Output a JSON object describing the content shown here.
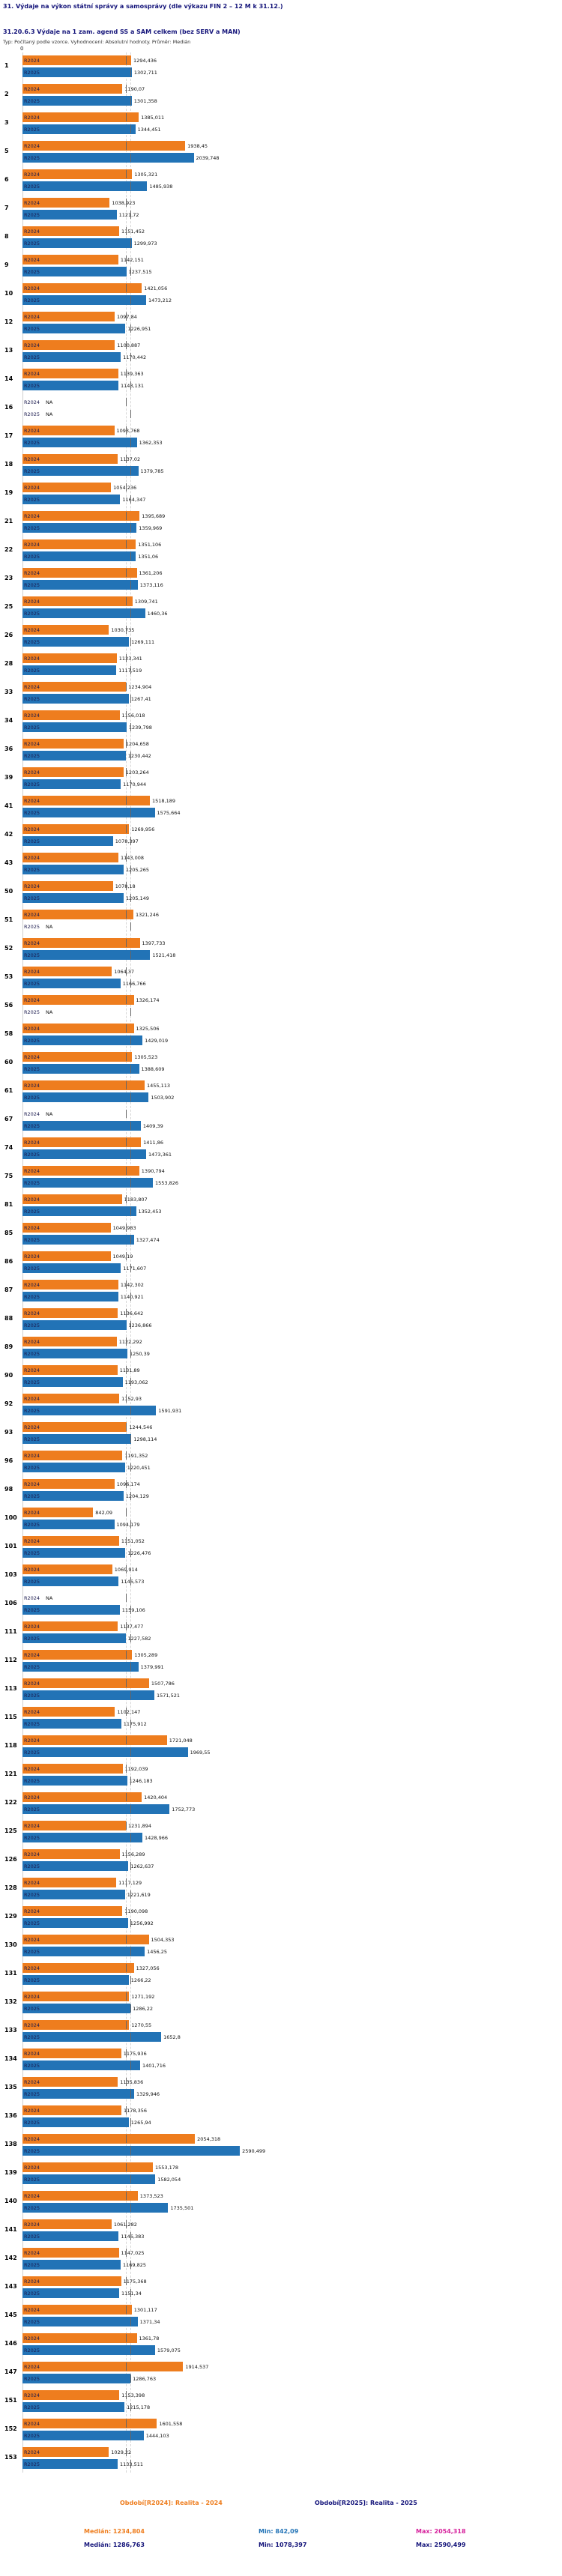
{
  "colors": {
    "accent_2024": "#ee7d1e",
    "accent_2025": "#2273b6",
    "navy": "#14147a",
    "magenta": "#d6219c",
    "median_line": "#d6d6d6"
  },
  "header": {
    "title": "31. Výdaje na výkon státní správy a samosprávy (dle výkazu FIN 2 – 12 M k 31.12.)",
    "subtitle": "31.20.6.3 Výdaje na 1 zam. agend SS a SAM celkem (bez SERV a MAN)",
    "meta": "Typ: Počítaný podle vzorce. Vyhodnocení: Absolutní hodnoty. Průměr: Medián",
    "axis_zero_label": "0"
  },
  "series": {
    "s2024": {
      "label": "R2024",
      "color": "#ee7d1e"
    },
    "s2025": {
      "label": "R2025",
      "color": "#2273b6"
    }
  },
  "chart_data": {
    "type": "bar",
    "orientation": "horizontal",
    "title": "31.20.6.3 Výdaje na 1 zam. agend SS a SAM celkem (bez SERV a MAN)",
    "xlabel": "",
    "ylabel": "",
    "xlim": [
      0,
      2700
    ],
    "grid": false,
    "legend_position": "bottom",
    "medians": {
      "r2024": "1234,804",
      "r2025": "1286,763"
    },
    "rows": [
      {
        "id": "1",
        "r2024": "1294,436",
        "r2025": "1302,711"
      },
      {
        "id": "2",
        "r2024": "1190,07",
        "r2025": "1301,358"
      },
      {
        "id": "3",
        "r2024": "1385,011",
        "r2025": "1344,451"
      },
      {
        "id": "5",
        "r2024": "1938,45",
        "r2025": "2039,748"
      },
      {
        "id": "6",
        "r2024": "1305,321",
        "r2025": "1485,938"
      },
      {
        "id": "7",
        "r2024": "1038,923",
        "r2025": "1121,72"
      },
      {
        "id": "8",
        "r2024": "1151,452",
        "r2025": "1299,973"
      },
      {
        "id": "9",
        "r2024": "1142,151",
        "r2025": "1237,515"
      },
      {
        "id": "10",
        "r2024": "1421,056",
        "r2025": "1473,212"
      },
      {
        "id": "12",
        "r2024": "1097,84",
        "r2025": "1226,951"
      },
      {
        "id": "13",
        "r2024": "1100,887",
        "r2025": "1170,442"
      },
      {
        "id": "14",
        "r2024": "1139,363",
        "r2025": "1143,131"
      },
      {
        "id": "16",
        "r2024": "NA",
        "r2025": "NA"
      },
      {
        "id": "17",
        "r2024": "1093,768",
        "r2025": "1362,353"
      },
      {
        "id": "18",
        "r2024": "1137,02",
        "r2025": "1379,785"
      },
      {
        "id": "19",
        "r2024": "1054,236",
        "r2025": "1164,347"
      },
      {
        "id": "21",
        "r2024": "1395,689",
        "r2025": "1359,969"
      },
      {
        "id": "22",
        "r2024": "1351,106",
        "r2025": "1351,06"
      },
      {
        "id": "23",
        "r2024": "1361,206",
        "r2025": "1373,116"
      },
      {
        "id": "25",
        "r2024": "1309,741",
        "r2025": "1460,36"
      },
      {
        "id": "26",
        "r2024": "1030,735",
        "r2025": "1269,111"
      },
      {
        "id": "28",
        "r2024": "1123,341",
        "r2025": "1117,519"
      },
      {
        "id": "33",
        "r2024": "1234,904",
        "r2025": "1267,41"
      },
      {
        "id": "34",
        "r2024": "1156,018",
        "r2025": "1239,798"
      },
      {
        "id": "36",
        "r2024": "1204,658",
        "r2025": "1230,442"
      },
      {
        "id": "39",
        "r2024": "1203,264",
        "r2025": "1170,944"
      },
      {
        "id": "41",
        "r2024": "1518,189",
        "r2025": "1575,664"
      },
      {
        "id": "42",
        "r2024": "1269,956",
        "r2025": "1078,397"
      },
      {
        "id": "43",
        "r2024": "1143,008",
        "r2025": "1205,265"
      },
      {
        "id": "50",
        "r2024": "1078,18",
        "r2025": "1205,149"
      },
      {
        "id": "51",
        "r2024": "1321,246",
        "r2025": "NA"
      },
      {
        "id": "52",
        "r2024": "1397,733",
        "r2025": "1521,418"
      },
      {
        "id": "53",
        "r2024": "1064,37",
        "r2025": "1166,766"
      },
      {
        "id": "56",
        "r2024": "1326,174",
        "r2025": "NA"
      },
      {
        "id": "58",
        "r2024": "1325,506",
        "r2025": "1429,019"
      },
      {
        "id": "60",
        "r2024": "1305,523",
        "r2025": "1388,609"
      },
      {
        "id": "61",
        "r2024": "1455,113",
        "r2025": "1503,902"
      },
      {
        "id": "67",
        "r2024": "NA",
        "r2025": "1409,39"
      },
      {
        "id": "74",
        "r2024": "1411,86",
        "r2025": "1473,361"
      },
      {
        "id": "75",
        "r2024": "1390,794",
        "r2025": "1553,826"
      },
      {
        "id": "81",
        "r2024": "1183,807",
        "r2025": "1352,453"
      },
      {
        "id": "85",
        "r2024": "1049,983",
        "r2025": "1327,474"
      },
      {
        "id": "86",
        "r2024": "1049,19",
        "r2025": "1171,607"
      },
      {
        "id": "87",
        "r2024": "1142,302",
        "r2025": "1140,921"
      },
      {
        "id": "88",
        "r2024": "1136,642",
        "r2025": "1236,866"
      },
      {
        "id": "89",
        "r2024": "1122,292",
        "r2025": "1250,39"
      },
      {
        "id": "90",
        "r2024": "1131,89",
        "r2025": "1193,062"
      },
      {
        "id": "92",
        "r2024": "1152,93",
        "r2025": "1591,931"
      },
      {
        "id": "93",
        "r2024": "1244,546",
        "r2025": "1298,114"
      },
      {
        "id": "96",
        "r2024": "1191,352",
        "r2025": "1220,451"
      },
      {
        "id": "98",
        "r2024": "1096,174",
        "r2025": "1204,129"
      },
      {
        "id": "100",
        "r2024": "842,09",
        "r2025": "1094,179"
      },
      {
        "id": "101",
        "r2024": "1151,052",
        "r2025": "1226,476"
      },
      {
        "id": "103",
        "r2024": "1069,914",
        "r2025": "1146,573"
      },
      {
        "id": "106",
        "r2024": "NA",
        "r2025": "1159,106"
      },
      {
        "id": "111",
        "r2024": "1137,477",
        "r2025": "1227,582"
      },
      {
        "id": "112",
        "r2024": "1305,289",
        "r2025": "1379,991"
      },
      {
        "id": "113",
        "r2024": "1507,786",
        "r2025": "1571,521"
      },
      {
        "id": "115",
        "r2024": "1102,147",
        "r2025": "1175,912"
      },
      {
        "id": "118",
        "r2024": "1721,048",
        "r2025": "1969,55"
      },
      {
        "id": "121",
        "r2024": "1192,039",
        "r2025": "1246,183"
      },
      {
        "id": "122",
        "r2024": "1420,404",
        "r2025": "1752,773"
      },
      {
        "id": "125",
        "r2024": "1231,894",
        "r2025": "1428,966"
      },
      {
        "id": "126",
        "r2024": "1156,289",
        "r2025": "1262,637"
      },
      {
        "id": "128",
        "r2024": "1117,129",
        "r2025": "1221,619"
      },
      {
        "id": "129",
        "r2024": "1190,098",
        "r2025": "1256,992"
      },
      {
        "id": "130",
        "r2024": "1504,353",
        "r2025": "1456,25"
      },
      {
        "id": "131",
        "r2024": "1327,056",
        "r2025": "1266,22"
      },
      {
        "id": "132",
        "r2024": "1271,192",
        "r2025": "1286,22"
      },
      {
        "id": "133",
        "r2024": "1270,55",
        "r2025": "1652,8"
      },
      {
        "id": "134",
        "r2024": "1175,936",
        "r2025": "1401,716"
      },
      {
        "id": "135",
        "r2024": "1135,836",
        "r2025": "1329,946"
      },
      {
        "id": "136",
        "r2024": "1178,356",
        "r2025": "1265,94"
      },
      {
        "id": "138",
        "r2024": "2054,318",
        "r2025": "2590,499"
      },
      {
        "id": "139",
        "r2024": "1553,178",
        "r2025": "1582,054"
      },
      {
        "id": "140",
        "r2024": "1373,523",
        "r2025": "1735,501"
      },
      {
        "id": "141",
        "r2024": "1061,282",
        "r2025": "1146,383"
      },
      {
        "id": "142",
        "r2024": "1147,025",
        "r2025": "1169,825"
      },
      {
        "id": "143",
        "r2024": "1175,368",
        "r2025": "1151,34"
      },
      {
        "id": "145",
        "r2024": "1301,117",
        "r2025": "1371,34"
      },
      {
        "id": "146",
        "r2024": "1361,78",
        "r2025": "1579,075"
      },
      {
        "id": "147",
        "r2024": "1914,537",
        "r2025": "1286,763"
      },
      {
        "id": "151",
        "r2024": "1153,398",
        "r2025": "1215,178"
      },
      {
        "id": "152",
        "r2024": "1601,558",
        "r2025": "1444,103"
      },
      {
        "id": "153",
        "r2024": "1029,22",
        "r2025": "1133,511"
      }
    ]
  },
  "footer": {
    "legend_2024": "Období[R2024]: Realita - 2024",
    "legend_2025": "Období[R2025]: Realita - 2025",
    "stats_2024": {
      "median": "Medián: 1234,804",
      "min": "Min: 842,09",
      "max": "Max: 2054,318"
    },
    "stats_2025": {
      "median": "Medián: 1286,763",
      "min": "Min: 1078,397",
      "max": "Max: 2590,499"
    }
  }
}
